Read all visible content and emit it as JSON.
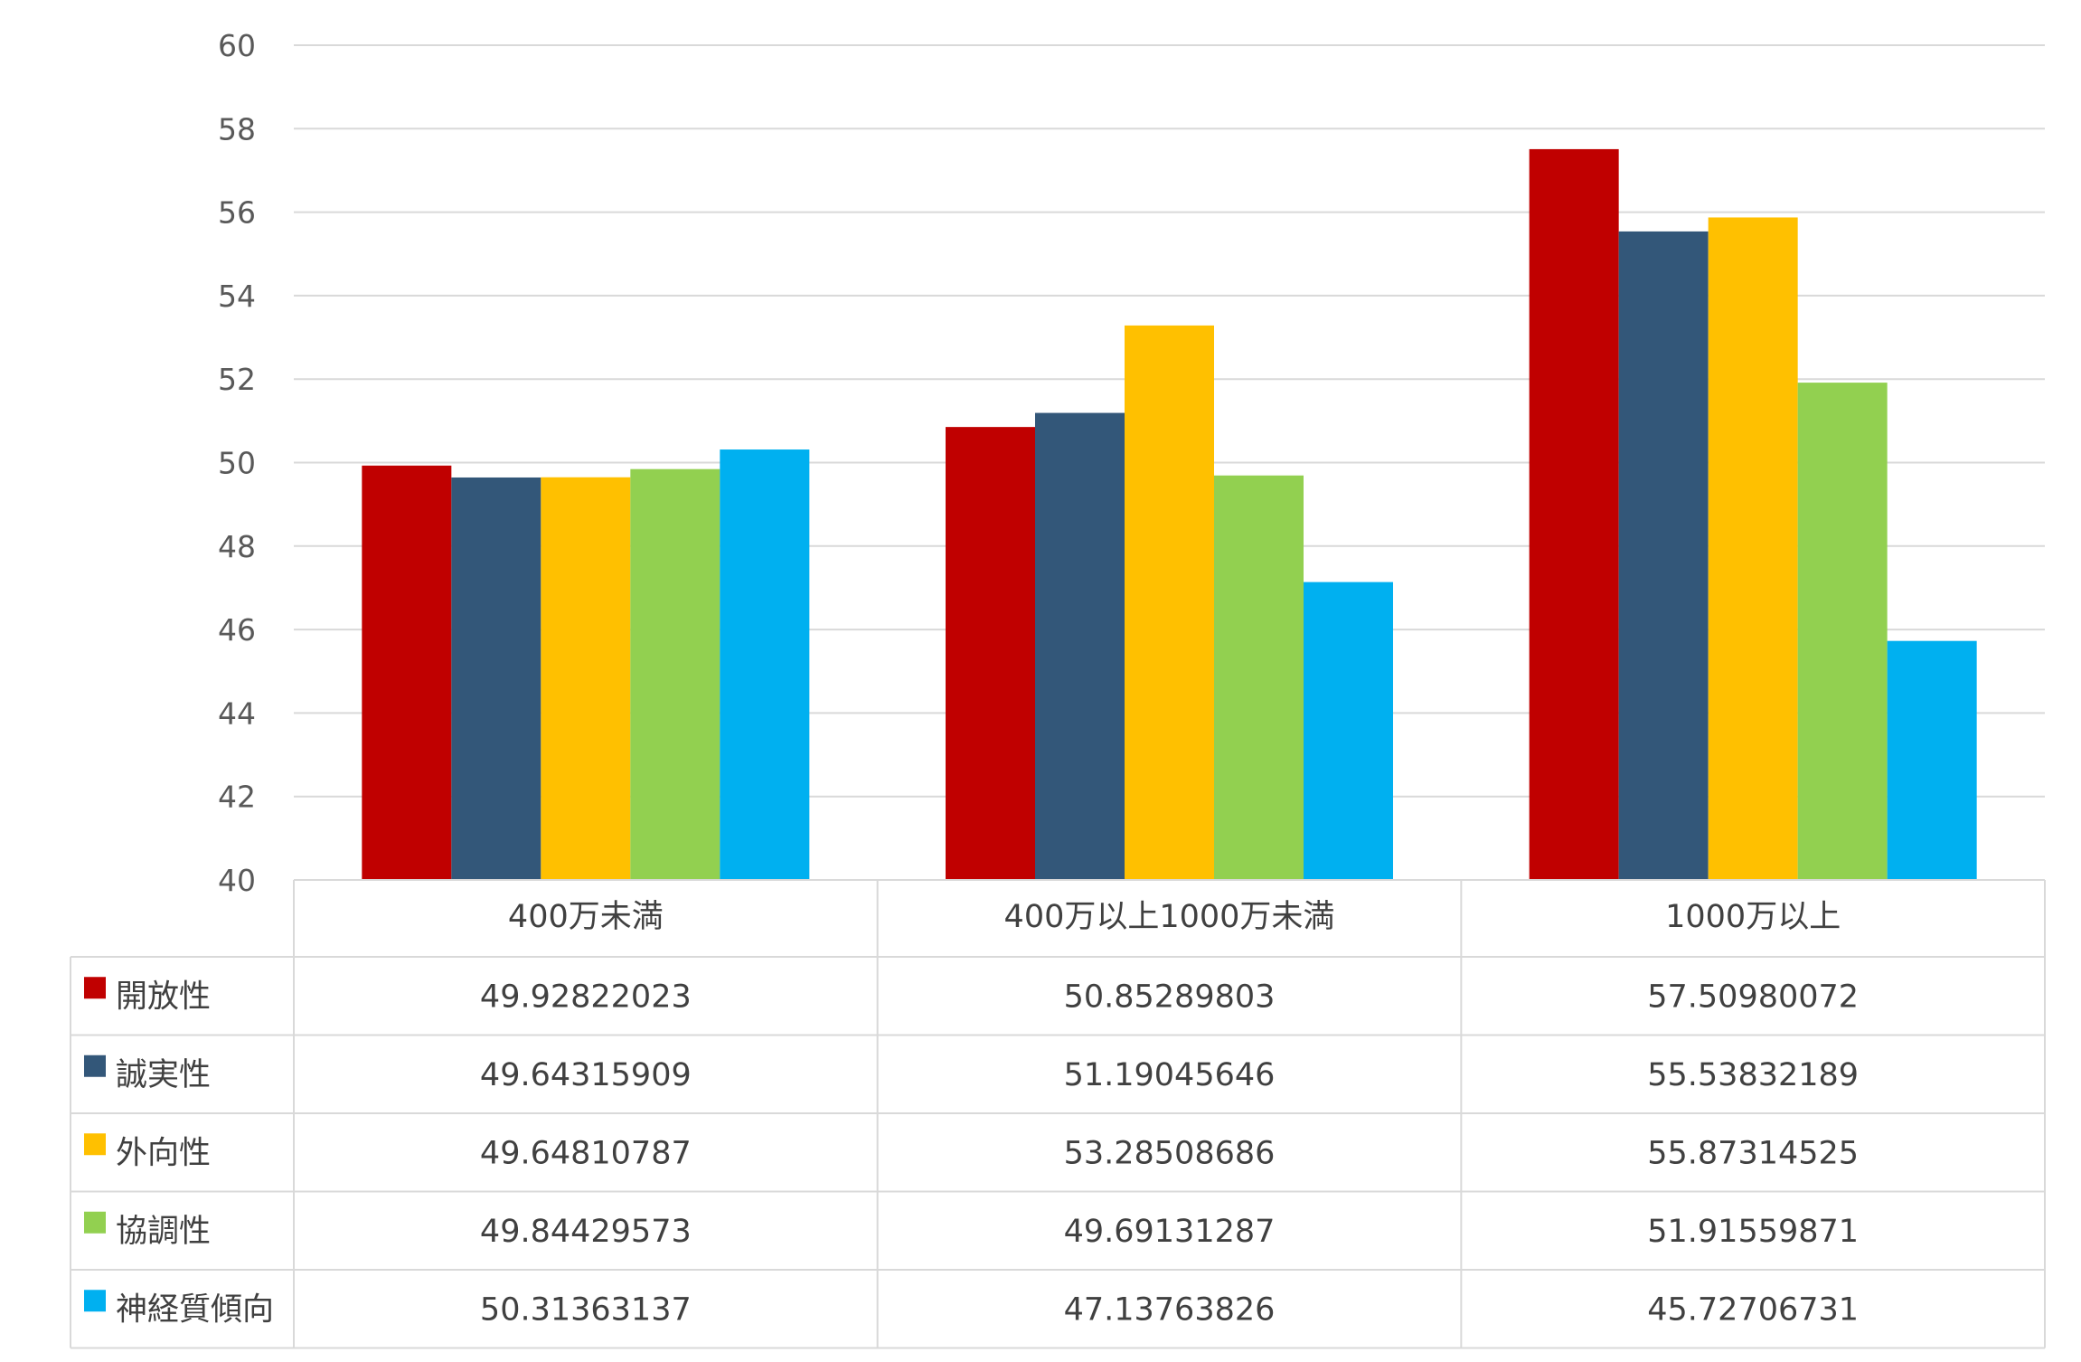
{
  "chart_data": {
    "type": "bar",
    "title": "",
    "xlabel": "",
    "ylabel": "",
    "ylim": [
      40,
      60
    ],
    "yticks": [
      40,
      42,
      44,
      46,
      48,
      50,
      52,
      54,
      56,
      58,
      60
    ],
    "grid": true,
    "legend": "data-table",
    "categories": [
      "400万未満",
      "400万以上1000万未満",
      "1000万以上"
    ],
    "series": [
      {
        "name": "開放性",
        "color": "#C00000",
        "values": [
          49.92822023,
          50.85289803,
          57.50980072
        ]
      },
      {
        "name": "誠実性",
        "color": "#335779",
        "values": [
          49.64315909,
          51.19045646,
          55.53832189
        ]
      },
      {
        "name": "外向性",
        "color": "#FFC000",
        "values": [
          49.64810787,
          53.28508686,
          55.87314525
        ]
      },
      {
        "name": "協調性",
        "color": "#92D050",
        "values": [
          49.84429573,
          49.69131287,
          51.91559871
        ]
      },
      {
        "name": "神経質傾向",
        "color": "#00B0F0",
        "values": [
          50.31363137,
          47.13763826,
          45.72706731
        ]
      }
    ],
    "table_values": [
      [
        "49.92822023",
        "50.85289803",
        "57.50980072"
      ],
      [
        "49.64315909",
        "51.19045646",
        "55.53832189"
      ],
      [
        "49.64810787",
        "53.28508686",
        "55.87314525"
      ],
      [
        "49.84429573",
        "49.69131287",
        "51.91559871"
      ],
      [
        "50.31363137",
        "47.13763826",
        "45.72706731"
      ]
    ]
  }
}
